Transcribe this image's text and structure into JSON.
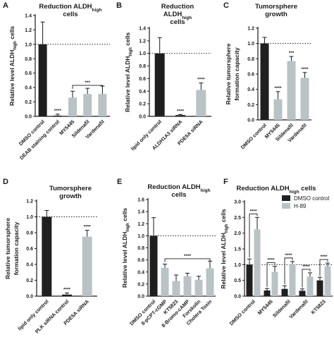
{
  "colors": {
    "dark": "#1f1f1f",
    "light": "#b9c3c6",
    "axis": "#1a1a1a"
  },
  "chart_data": [
    {
      "id": "A",
      "letter": "A",
      "type": "bar",
      "title_lines": [
        [
          "Reduction ALDH",
          "high"
        ],
        [
          "cells",
          ""
        ]
      ],
      "ylabel": [
        "Relative level ALDH",
        "high",
        " cells"
      ],
      "ylim": [
        0,
        1.4
      ],
      "yticks": [
        "0.0",
        "0.2",
        "0.4",
        "0.6",
        "0.8",
        "1.0",
        "1.2",
        "1.4"
      ],
      "categories": [
        "DMSO control",
        "DEAB staining control",
        "MY5445",
        "Sildenafil",
        "Vardenafil"
      ],
      "values": [
        1.0,
        0.01,
        0.26,
        0.31,
        0.31
      ],
      "errors": [
        0.31,
        0.02,
        0.09,
        0.08,
        0.11
      ],
      "colors": [
        "dark",
        "dark",
        "light",
        "light",
        "light"
      ],
      "stars": [
        "",
        "****",
        "",
        "",
        ""
      ],
      "bracket": {
        "from": 2,
        "to": 4,
        "y": 0.43,
        "label": "***"
      },
      "dotted": 1.0
    },
    {
      "id": "B",
      "letter": "B",
      "type": "bar",
      "title_lines": [
        [
          "Reduction",
          ""
        ],
        [
          "ALDH",
          "high"
        ],
        [
          "cells",
          ""
        ]
      ],
      "ylabel": [
        "Relative level ALDH",
        "high",
        " cells"
      ],
      "ylim": [
        0,
        1.4
      ],
      "yticks": [
        "0.0",
        "0.2",
        "0.4",
        "0.6",
        "0.8",
        "1.0",
        "1.2",
        "1.4"
      ],
      "categories": [
        "lipid only control",
        "ALDH1A3 siRNA",
        "PDE5A siRNA"
      ],
      "values": [
        1.0,
        0.02,
        0.42
      ],
      "errors": [
        0.25,
        0.01,
        0.11
      ],
      "colors": [
        "dark",
        "dark",
        "light"
      ],
      "stars": [
        "",
        "****",
        "****"
      ],
      "dotted": 1.0
    },
    {
      "id": "C",
      "letter": "C",
      "type": "bar",
      "title_lines": [
        [
          "Tumorsphere",
          ""
        ],
        [
          "growth",
          ""
        ]
      ],
      "ylabel": [
        "Relative tumorsphere",
        "",
        ""
      ],
      "ylabel2": "formation capacity",
      "ylim": [
        0,
        1.2
      ],
      "yticks": [
        "0.0",
        "0.2",
        "0.4",
        "0.6",
        "0.8",
        "1.0",
        "1.2"
      ],
      "categories": [
        "DMSO control",
        "MY5445",
        "Sildenafil",
        "Vardenafil"
      ],
      "values": [
        1.0,
        0.27,
        0.77,
        0.55
      ],
      "errors": [
        0.08,
        0.1,
        0.06,
        0.07
      ],
      "colors": [
        "dark",
        "light",
        "light",
        "light"
      ],
      "stars": [
        "",
        "****",
        "***",
        "****"
      ],
      "dotted": 1.0
    },
    {
      "id": "D",
      "letter": "D",
      "type": "bar",
      "title_lines": [
        [
          "Tumorsphere",
          ""
        ],
        [
          "growth",
          ""
        ]
      ],
      "ylabel": [
        "Relative tumorsphere",
        "",
        ""
      ],
      "ylabel2": "formation capacity",
      "ylim": [
        0,
        1.2
      ],
      "yticks": [
        "0.0",
        "0.2",
        "0.4",
        "0.6",
        "0.8",
        "1.0",
        "1.2"
      ],
      "categories": [
        "lipid only control",
        "PLK siRNA control",
        "PDE5A siRNA"
      ],
      "values": [
        1.0,
        0.02,
        0.75
      ],
      "errors": [
        0.08,
        0.02,
        0.08
      ],
      "colors": [
        "dark",
        "dark",
        "light"
      ],
      "stars": [
        "",
        "****",
        "****"
      ],
      "dotted": 1.0
    },
    {
      "id": "E",
      "letter": "E",
      "type": "bar",
      "title_lines": [
        [
          "Reduction ALDH",
          "high"
        ],
        [
          "cells",
          ""
        ]
      ],
      "ylabel": [
        "Relative level ALDH",
        "high",
        " cells"
      ],
      "ylim": [
        0,
        1.6
      ],
      "yticks": [
        "0.0",
        "0.2",
        "0.4",
        "0.6",
        "0.8",
        "1.0",
        "1.2",
        "1.4",
        "1.6"
      ],
      "categories": [
        "DMSO control",
        "8-pCPT-cGMP",
        "KT5823",
        "8-Bromo-cAMP",
        "Forskolin",
        "Cholera Toxin"
      ],
      "values": [
        1.0,
        0.47,
        0.25,
        0.33,
        0.27,
        0.46
      ],
      "errors": [
        0.3,
        0.06,
        0.1,
        0.05,
        0.06,
        0.12
      ],
      "colors": [
        "dark",
        "light",
        "light",
        "light",
        "light",
        "light"
      ],
      "stars": [
        "",
        "",
        "",
        "",
        "",
        ""
      ],
      "bracket": {
        "from": 1,
        "to": 5,
        "y": 0.62,
        "label": "****"
      },
      "dotted": 1.0
    },
    {
      "id": "F",
      "letter": "F",
      "type": "bar",
      "title_lines": [
        [
          "Reduction ALDH",
          "high"
        ],
        [
          "",
          ""
        ]
      ],
      "title_suffix": " cells",
      "ylabel": [
        "Relative level ALDH",
        "high",
        " cells"
      ],
      "ylim": [
        0,
        3.0
      ],
      "yticks": [
        "0.0",
        "0.5",
        "1.0",
        "1.5",
        "2.0",
        "2.5",
        "3.0"
      ],
      "categories": [
        "DMSO control",
        "MY5445",
        "Sildenafil",
        "Vardenafil",
        "KT5823"
      ],
      "series": [
        {
          "name": "DMSO control",
          "color": "dark",
          "values": [
            1.0,
            0.18,
            0.23,
            0.17,
            0.5
          ],
          "errors": [
            0.18,
            0.06,
            0.1,
            0.06,
            0.1
          ]
        },
        {
          "name": "H-89",
          "color": "light",
          "values": [
            2.12,
            0.77,
            1.02,
            0.62,
            0.95
          ],
          "errors": [
            0.38,
            0.18,
            0.08,
            0.12,
            0.1
          ]
        }
      ],
      "pair_stars": [
        "****",
        "****",
        "****",
        "****",
        "****"
      ],
      "dotted": 1.0
    }
  ]
}
